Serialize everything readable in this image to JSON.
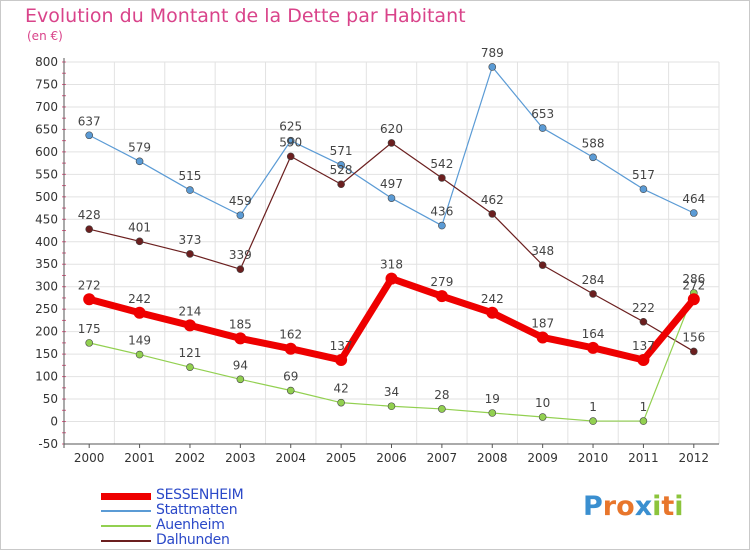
{
  "title": "Evolution du Montant de la Dette par Habitant",
  "unit": "(en €)",
  "logo": {
    "letters": [
      "P",
      "r",
      "o",
      "x",
      "i",
      "t",
      "i"
    ],
    "colors": [
      "#3a8fd0",
      "#e8762c",
      "#e8762c",
      "#3a8fd0",
      "#8cc43c",
      "#e8762c",
      "#8cc43c"
    ]
  },
  "chart_data": {
    "type": "line",
    "x": [
      "2000",
      "2001",
      "2002",
      "2003",
      "2004",
      "2005",
      "2006",
      "2007",
      "2008",
      "2009",
      "2010",
      "2011",
      "2012"
    ],
    "ylim": [
      -50,
      800
    ],
    "yticks": [
      -50,
      0,
      50,
      100,
      150,
      200,
      250,
      300,
      350,
      400,
      450,
      500,
      550,
      600,
      650,
      700,
      750,
      800
    ],
    "grid": true,
    "legend_position": "bottom-left",
    "series": [
      {
        "name": "Stattmatten",
        "color": "#5b9bd5",
        "width": 1.2,
        "marker": 3.5,
        "values": [
          637,
          579,
          515,
          459,
          625,
          571,
          497,
          436,
          789,
          653,
          588,
          517,
          464
        ],
        "labels": [
          "637",
          "579",
          "515",
          "459",
          "625",
          "571",
          "497",
          "436",
          "789",
          "653",
          "588",
          "517",
          "464"
        ]
      },
      {
        "name": "Dalhunden",
        "color": "#6b1f1f",
        "width": 1.2,
        "marker": 3.5,
        "values": [
          428,
          401,
          373,
          339,
          590,
          528,
          620,
          542,
          462,
          348,
          284,
          222,
          156
        ],
        "labels": [
          "428",
          "401",
          "373",
          "339",
          "590",
          "528",
          "620",
          "542",
          "462",
          "348",
          "284",
          "222",
          "156"
        ]
      },
      {
        "name": "Auenheim",
        "color": "#92d050",
        "width": 1.2,
        "marker": 3.5,
        "values": [
          175,
          149,
          121,
          94,
          69,
          42,
          34,
          28,
          19,
          10,
          1,
          1,
          286
        ],
        "labels": [
          "175",
          "149",
          "121",
          "94",
          "69",
          "42",
          "34",
          "28",
          "19",
          "10",
          "1",
          "1",
          "286"
        ]
      },
      {
        "name": "SESSENHEIM",
        "color": "#ee0000",
        "width": 7,
        "marker": 6,
        "values": [
          272,
          242,
          214,
          185,
          162,
          137,
          318,
          279,
          242,
          187,
          164,
          137,
          272
        ],
        "labels": [
          "272",
          "242",
          "214",
          "185",
          "162",
          "137",
          "318",
          "279",
          "242",
          "187",
          "164",
          "137",
          "272"
        ]
      }
    ],
    "legend_order": [
      "SESSENHEIM",
      "Stattmatten",
      "Auenheim",
      "Dalhunden"
    ]
  }
}
